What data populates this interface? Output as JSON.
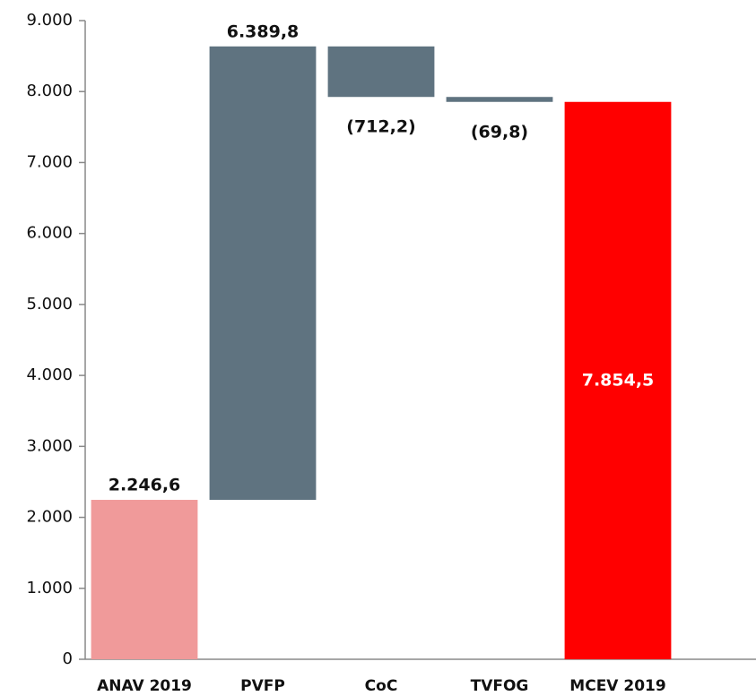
{
  "chart_data": {
    "type": "waterfall",
    "categories": [
      "ANAV 2019",
      "PVFP",
      "CoC",
      "TVFOG",
      "MCEV 2019"
    ],
    "values": [
      2246.6,
      6389.8,
      -712.2,
      -69.8,
      7854.5
    ],
    "value_labels": [
      "2.246,6",
      "6.389,8",
      "(712,2)",
      "(69,8)",
      "7.854,5"
    ],
    "measures": [
      "absolute",
      "relative",
      "relative",
      "relative",
      "total"
    ],
    "colors": [
      "#f09a9a",
      "#5f7380",
      "#5f7380",
      "#5f7380",
      "#ff0000"
    ],
    "ylim": [
      0,
      9000
    ],
    "yticks": [
      0,
      {
        "value": 1000,
        "label": "1.000"
      },
      {
        "value": 2000,
        "label": "2.000"
      },
      {
        "value": 3000,
        "label": "3.000"
      },
      {
        "value": 4000,
        "label": "4.000"
      },
      {
        "value": 5000,
        "label": "5.000"
      },
      {
        "value": 6000,
        "label": "6.000"
      },
      {
        "value": 7000,
        "label": "7.000"
      },
      {
        "value": 8000,
        "label": "8.000"
      },
      {
        "value": 9000,
        "label": "9.000"
      }
    ],
    "grid": false
  }
}
